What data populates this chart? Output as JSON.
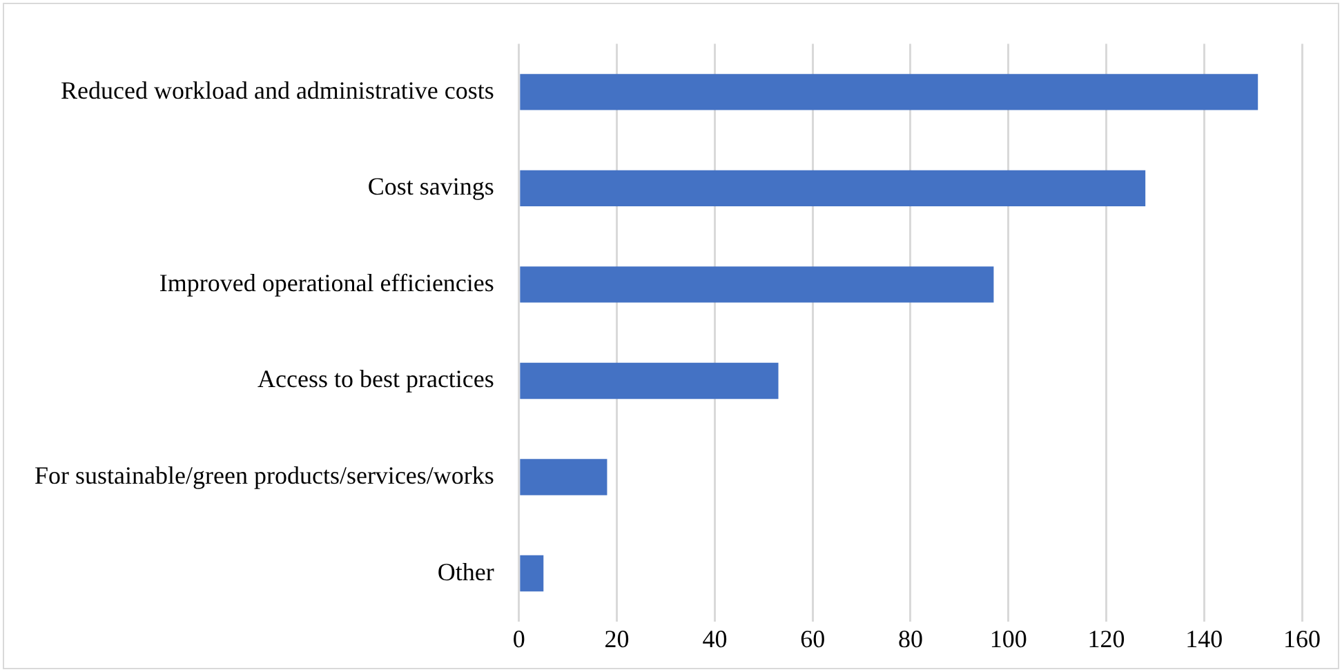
{
  "chart_data": {
    "type": "bar",
    "orientation": "horizontal",
    "categories": [
      "Reduced workload and administrative costs",
      "Cost savings",
      "Improved operational efficiencies",
      "Access to best practices",
      "For sustainable/green products/services/works",
      "Other"
    ],
    "values": [
      151,
      128,
      97,
      53,
      18,
      5
    ],
    "color": "#4472c4",
    "xlim": [
      0,
      160
    ],
    "xticks": [
      0,
      20,
      40,
      60,
      80,
      100,
      120,
      140,
      160
    ],
    "grid": "x",
    "legend": false
  }
}
